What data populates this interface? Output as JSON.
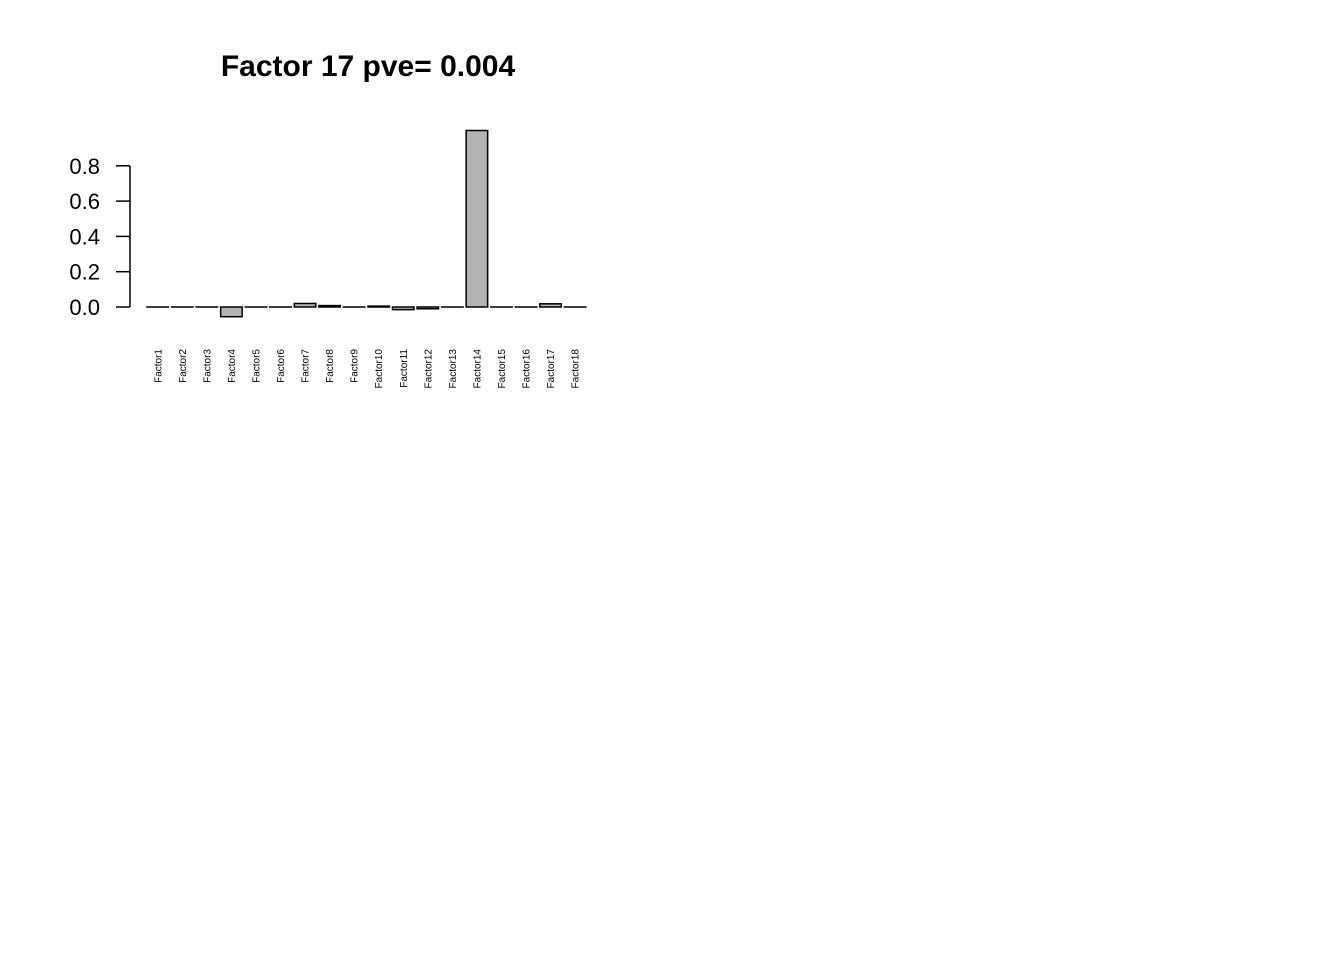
{
  "chart_data": {
    "type": "bar",
    "title": "Factor 17 pve= 0.004",
    "xlabel": "",
    "ylabel": "",
    "categories": [
      "Factor1",
      "Factor2",
      "Factor3",
      "Factor4",
      "Factor5",
      "Factor6",
      "Factor7",
      "Factor8",
      "Factor9",
      "Factor10",
      "Factor11",
      "Factor12",
      "Factor13",
      "Factor14",
      "Factor15",
      "Factor16",
      "Factor17",
      "Factor18"
    ],
    "values": [
      0.0,
      0.0,
      0.0,
      -0.055,
      0.0,
      0.0,
      0.02,
      0.008,
      0.0,
      0.005,
      -0.015,
      -0.01,
      0.0,
      1.0,
      0.0,
      0.0,
      0.018,
      0.0
    ],
    "yticks": [
      "0.0",
      "0.2",
      "0.4",
      "0.6",
      "0.8"
    ],
    "ylim": [
      -0.055,
      1.0
    ],
    "bar_color": "#b3b3b3",
    "grid": false,
    "legend": "none"
  }
}
